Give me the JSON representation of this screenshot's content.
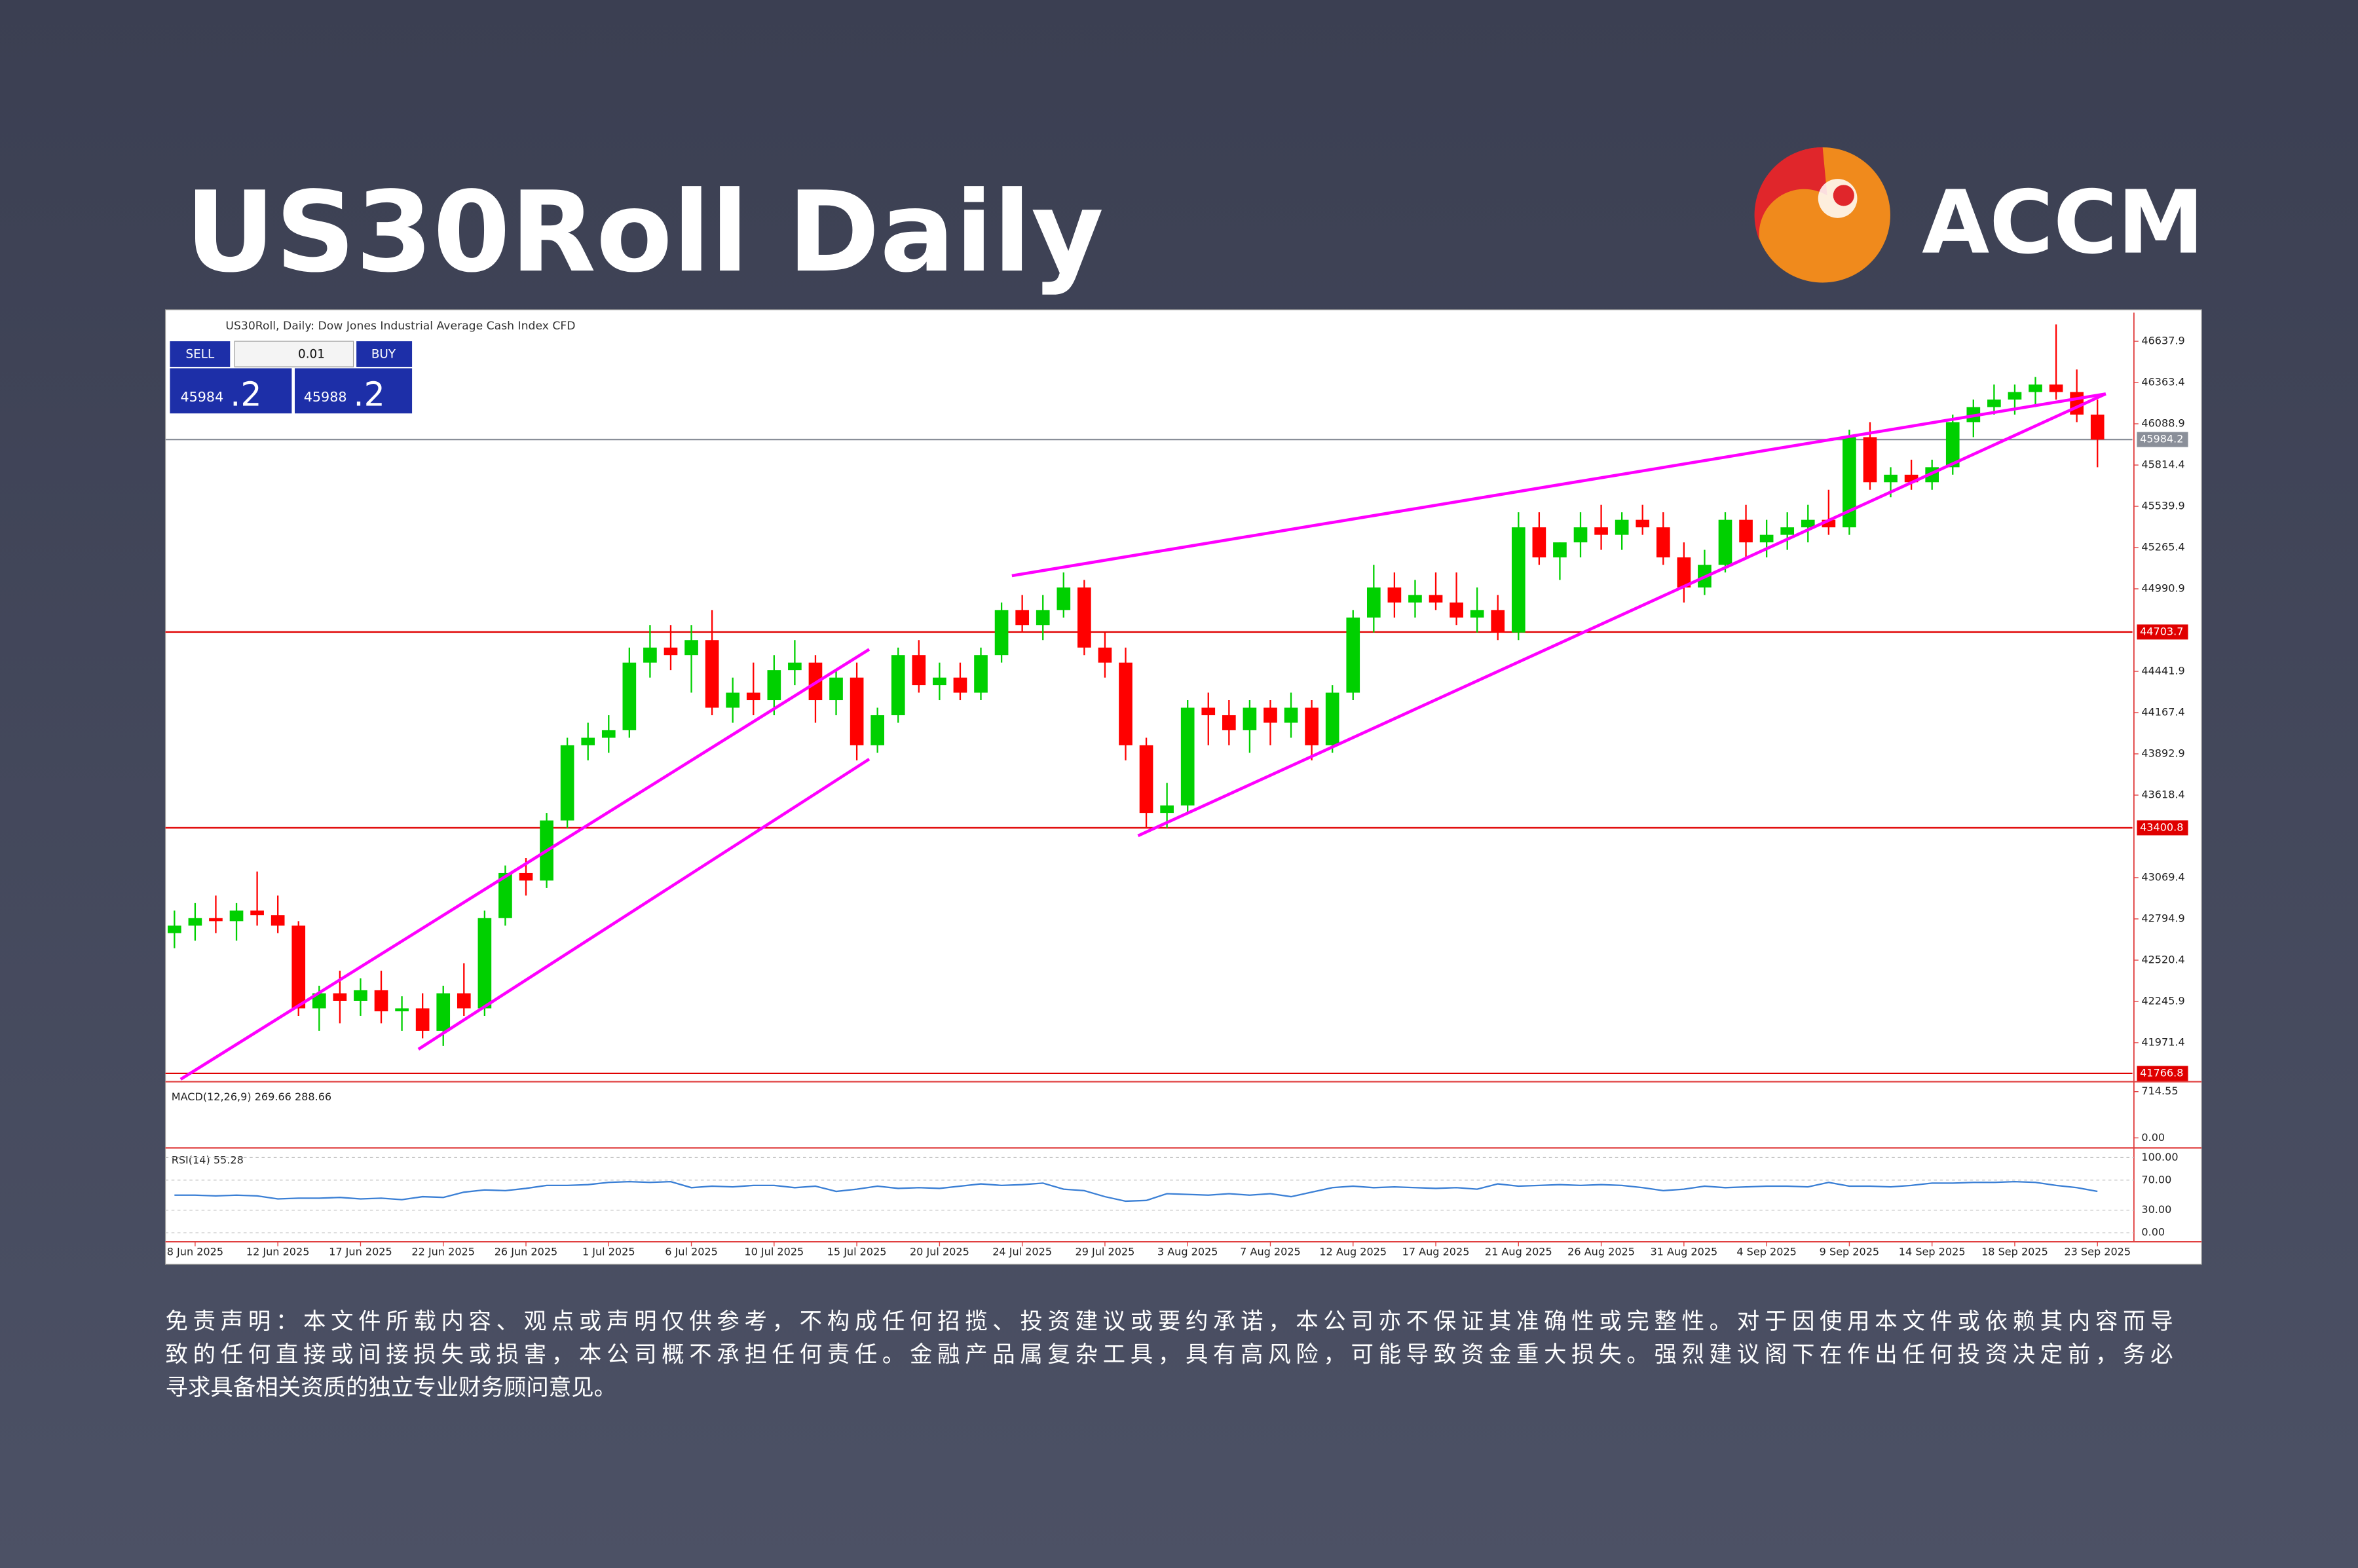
{
  "header": {
    "title": "US30Roll Daily",
    "logo": "ACCM"
  },
  "disclaimer": [
    "免责声明：本文件所载内容、观点或声明仅供参考，不构成任何招揽、投资建议或要约承诺，本公司亦不保证其准确性或完整性。对于因使用本文件或依赖其内容而导",
    "致的任何直接或间接损失或损害，本公司概不承担任何责任。金融产品属复杂工具，具有高风险，可能导致资金重大损失。强烈建议阁下在作出任何投资决定前，务必",
    "寻求具备相关资质的独立专业财务顾问意见。"
  ],
  "chart_data": {
    "type": "candlestick",
    "title": "US30Roll, Daily: Dow Jones Industrial Average Cash Index CFD",
    "trade_panel": {
      "sell": "SELL",
      "buy": "BUY",
      "lot": "0.01",
      "bid": "45984",
      "bid_frac": ".2",
      "ask": "45988",
      "ask_frac": ".2"
    },
    "categories": [
      null,
      "8 Jun 2025",
      null,
      null,
      null,
      "12 Jun 2025",
      null,
      null,
      null,
      "17 Jun 2025",
      null,
      null,
      null,
      "22 Jun 2025",
      null,
      null,
      null,
      "26 Jun 2025",
      null,
      null,
      null,
      "1 Jul 2025",
      null,
      null,
      null,
      "6 Jul 2025",
      null,
      null,
      null,
      "10 Jul 2025",
      null,
      null,
      null,
      "15 Jul 2025",
      null,
      null,
      null,
      "20 Jul 2025",
      null,
      null,
      null,
      "24 Jul 2025",
      null,
      null,
      null,
      "29 Jul 2025",
      null,
      null,
      null,
      "3 Aug 2025",
      null,
      null,
      null,
      "7 Aug 2025",
      null,
      null,
      null,
      "12 Aug 2025",
      null,
      null,
      null,
      "17 Aug 2025",
      null,
      null,
      null,
      "21 Aug 2025",
      null,
      null,
      null,
      "26 Aug 2025",
      null,
      null,
      null,
      "31 Aug 2025",
      null,
      null,
      null,
      "4 Sep 2025",
      null,
      null,
      null,
      "9 Sep 2025",
      null,
      null,
      null,
      "14 Sep 2025",
      null,
      null,
      null,
      "18 Sep 2025",
      null,
      null,
      null,
      "23 Sep 2025"
    ],
    "ohlc": [
      [
        42700,
        42850,
        42600,
        42750
      ],
      [
        42750,
        42900,
        42650,
        42800
      ],
      [
        42800,
        42950,
        42700,
        42780
      ],
      [
        42780,
        42900,
        42650,
        42850
      ],
      [
        42850,
        43110,
        42750,
        42820
      ],
      [
        42820,
        42950,
        42700,
        42750
      ],
      [
        42750,
        42780,
        42150,
        42200
      ],
      [
        42200,
        42350,
        42050,
        42300
      ],
      [
        42300,
        42450,
        42100,
        42250
      ],
      [
        42250,
        42400,
        42150,
        42320
      ],
      [
        42320,
        42450,
        42100,
        42180
      ],
      [
        42180,
        42280,
        42050,
        42200
      ],
      [
        42200,
        42300,
        42000,
        42050
      ],
      [
        42050,
        42350,
        41950,
        42300
      ],
      [
        42300,
        42500,
        42150,
        42200
      ],
      [
        42200,
        42850,
        42150,
        42800
      ],
      [
        42800,
        43150,
        42750,
        43100
      ],
      [
        43100,
        43200,
        42950,
        43050
      ],
      [
        43050,
        43500,
        43000,
        43450
      ],
      [
        43450,
        44000,
        43400,
        43950
      ],
      [
        43950,
        44100,
        43850,
        44000
      ],
      [
        44000,
        44150,
        43900,
        44050
      ],
      [
        44050,
        44600,
        44000,
        44500
      ],
      [
        44500,
        44750,
        44400,
        44600
      ],
      [
        44600,
        44750,
        44450,
        44550
      ],
      [
        44550,
        44750,
        44300,
        44650
      ],
      [
        44650,
        44850,
        44150,
        44200
      ],
      [
        44200,
        44400,
        44100,
        44300
      ],
      [
        44300,
        44500,
        44150,
        44250
      ],
      [
        44250,
        44550,
        44150,
        44450
      ],
      [
        44450,
        44650,
        44350,
        44500
      ],
      [
        44500,
        44550,
        44100,
        44250
      ],
      [
        44250,
        44450,
        44150,
        44400
      ],
      [
        44400,
        44500,
        43850,
        43950
      ],
      [
        43950,
        44200,
        43900,
        44150
      ],
      [
        44150,
        44600,
        44100,
        44550
      ],
      [
        44550,
        44650,
        44300,
        44350
      ],
      [
        44350,
        44500,
        44250,
        44400
      ],
      [
        44400,
        44500,
        44250,
        44300
      ],
      [
        44300,
        44600,
        44250,
        44550
      ],
      [
        44550,
        44900,
        44500,
        44850
      ],
      [
        44850,
        44950,
        44700,
        44750
      ],
      [
        44750,
        44950,
        44650,
        44850
      ],
      [
        44850,
        45100,
        44800,
        45000
      ],
      [
        45000,
        45050,
        44550,
        44600
      ],
      [
        44600,
        44700,
        44400,
        44500
      ],
      [
        44500,
        44600,
        43850,
        43950
      ],
      [
        43950,
        44000,
        43400,
        43500
      ],
      [
        43500,
        43700,
        43400,
        43550
      ],
      [
        43550,
        44250,
        43500,
        44200
      ],
      [
        44200,
        44300,
        43950,
        44150
      ],
      [
        44150,
        44250,
        43950,
        44050
      ],
      [
        44050,
        44250,
        43900,
        44200
      ],
      [
        44200,
        44250,
        43950,
        44100
      ],
      [
        44100,
        44300,
        44000,
        44200
      ],
      [
        44200,
        44250,
        43850,
        43950
      ],
      [
        43950,
        44350,
        43900,
        44300
      ],
      [
        44300,
        44850,
        44250,
        44800
      ],
      [
        44800,
        45150,
        44700,
        45000
      ],
      [
        45000,
        45100,
        44800,
        44900
      ],
      [
        44900,
        45050,
        44800,
        44950
      ],
      [
        44950,
        45100,
        44850,
        44900
      ],
      [
        44900,
        45100,
        44750,
        44800
      ],
      [
        44800,
        45000,
        44700,
        44850
      ],
      [
        44850,
        44950,
        44650,
        44700
      ],
      [
        44700,
        45500,
        44650,
        45400
      ],
      [
        45400,
        45500,
        45150,
        45200
      ],
      [
        45200,
        45300,
        45050,
        45300
      ],
      [
        45300,
        45500,
        45200,
        45400
      ],
      [
        45400,
        45550,
        45250,
        45350
      ],
      [
        45350,
        45500,
        45250,
        45450
      ],
      [
        45450,
        45550,
        45350,
        45400
      ],
      [
        45400,
        45500,
        45150,
        45200
      ],
      [
        45200,
        45300,
        44900,
        45000
      ],
      [
        45000,
        45250,
        44950,
        45150
      ],
      [
        45150,
        45500,
        45100,
        45450
      ],
      [
        45450,
        45550,
        45200,
        45300
      ],
      [
        45300,
        45450,
        45200,
        45350
      ],
      [
        45350,
        45500,
        45250,
        45400
      ],
      [
        45400,
        45550,
        45300,
        45450
      ],
      [
        45450,
        45650,
        45350,
        45400
      ],
      [
        45400,
        46050,
        45350,
        46000
      ],
      [
        46000,
        46100,
        45650,
        45700
      ],
      [
        45700,
        45800,
        45600,
        45750
      ],
      [
        45750,
        45850,
        45650,
        45700
      ],
      [
        45700,
        45850,
        45650,
        45800
      ],
      [
        45800,
        46150,
        45750,
        46100
      ],
      [
        46100,
        46250,
        46000,
        46200
      ],
      [
        46200,
        46350,
        46150,
        46250
      ],
      [
        46250,
        46350,
        46150,
        46300
      ],
      [
        46300,
        46400,
        46200,
        46350
      ],
      [
        46350,
        46750,
        46250,
        46300
      ],
      [
        46300,
        46450,
        46100,
        46150
      ],
      [
        46150,
        46250,
        45800,
        45984
      ]
    ],
    "up_color": "#00d000",
    "down_color": "#ff0000",
    "ylim": [
      41727,
      46828
    ],
    "yticks": [
      46637.9,
      46363.4,
      46088.9,
      45814.4,
      45539.9,
      45265.4,
      44990.9,
      44441.9,
      44167.4,
      43892.9,
      43618.4,
      43069.4,
      42794.9,
      42520.4,
      42245.9,
      41971.4
    ],
    "levels": [
      {
        "value": 44703.7,
        "color": "#e00000"
      },
      {
        "value": 43400.8,
        "color": "#e00000"
      },
      {
        "value": 41766.8,
        "color": "#e00000"
      },
      {
        "value": 45984.2,
        "color": "#8a8f99"
      }
    ],
    "trendlines": [
      {
        "from": [
          0.3,
          41728
        ],
        "to": [
          33.6,
          44588
        ],
        "color": "#ff00ff"
      },
      {
        "from": [
          11.8,
          41928
        ],
        "to": [
          33.6,
          43858
        ],
        "color": "#ff00ff"
      },
      {
        "from": [
          40.5,
          45078
        ],
        "to": [
          93.4,
          46288
        ],
        "color": "#ff00ff"
      },
      {
        "from": [
          46.6,
          43348
        ],
        "to": [
          93.4,
          46288
        ],
        "color": "#ff00ff"
      }
    ],
    "macd": {
      "title": "MACD(12,26,9) 269.66 288.66",
      "ylim": [
        -119,
        834
      ],
      "yticks": [
        {
          "value": 714.55,
          "label": "714.55"
        },
        {
          "value": 0,
          "label": "0.00"
        }
      ]
    },
    "rsi": {
      "title": "RSI(14) 55.28",
      "ylim": [
        -12,
        110
      ],
      "color": "#3a7fd5",
      "yticks": [
        {
          "value": 100,
          "label": "100.00"
        },
        {
          "value": 70,
          "label": "70.00"
        },
        {
          "value": 30,
          "label": "30.00"
        },
        {
          "value": 0,
          "label": "0.00"
        }
      ],
      "values": [
        50,
        50,
        49,
        50,
        49,
        45,
        46,
        46,
        47,
        45,
        46,
        44,
        48,
        47,
        54,
        57,
        56,
        59,
        63,
        63,
        64,
        67,
        68,
        67,
        68,
        60,
        62,
        61,
        63,
        63,
        60,
        62,
        55,
        58,
        62,
        59,
        60,
        59,
        62,
        65,
        63,
        64,
        66,
        58,
        56,
        48,
        42,
        43,
        52,
        51,
        50,
        52,
        50,
        52,
        48,
        54,
        60,
        62,
        60,
        61,
        60,
        59,
        60,
        58,
        65,
        62,
        63,
        64,
        63,
        64,
        63,
        60,
        56,
        58,
        62,
        60,
        61,
        62,
        62,
        61,
        67,
        62,
        62,
        61,
        63,
        66,
        66,
        67,
        67,
        68,
        67,
        63,
        60,
        55
      ]
    }
  }
}
